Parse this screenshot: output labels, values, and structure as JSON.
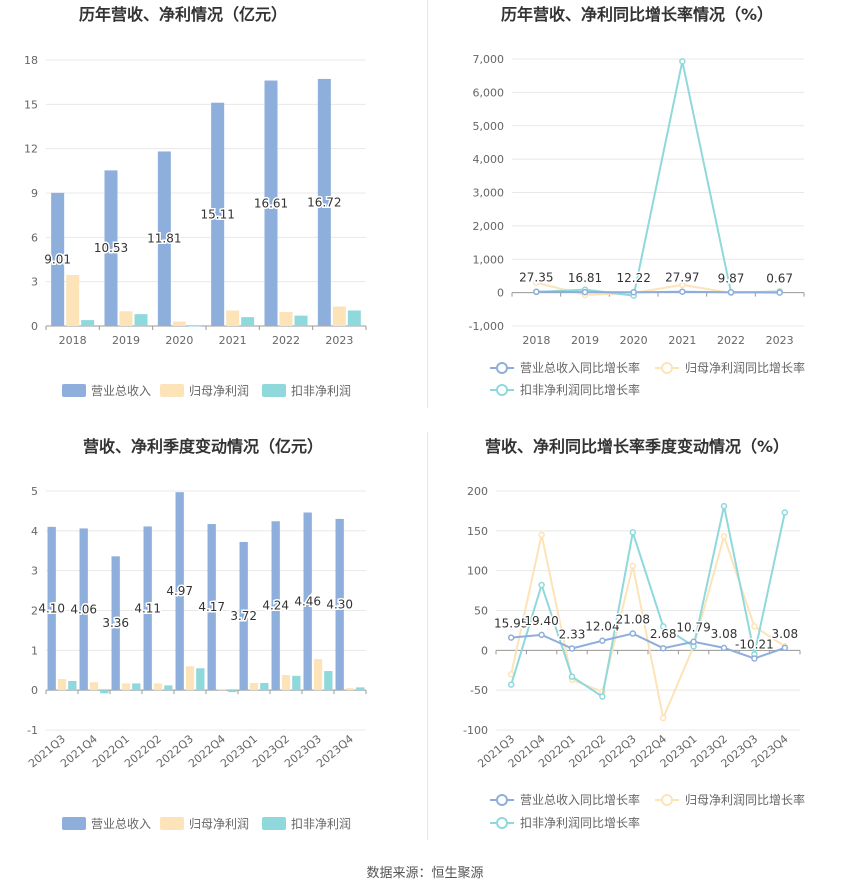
{
  "footer": {
    "source": "数据来源：恒生聚源"
  },
  "colors": {
    "blue": "#8eaedc",
    "orange": "#fde3b8",
    "teal": "#8fd8dc",
    "grid": "#e8e8e8",
    "axis": "#999999",
    "text": "#666666",
    "title": "#333333"
  },
  "chart_data": [
    {
      "id": "annual-revenue",
      "type": "bar",
      "title": "历年营收、净利情况（亿元）",
      "categories": [
        "2018",
        "2019",
        "2020",
        "2021",
        "2022",
        "2023"
      ],
      "series": [
        {
          "name": "营业总收入",
          "color": "#8eaedc",
          "values": [
            9.01,
            10.53,
            11.81,
            15.11,
            16.61,
            16.72
          ],
          "labels": [
            "9.01",
            "10.53",
            "11.81",
            "15.11",
            "16.61",
            "16.72"
          ]
        },
        {
          "name": "归母净利润",
          "color": "#fde3b8",
          "values": [
            3.45,
            1.0,
            0.3,
            1.05,
            0.95,
            1.32
          ]
        },
        {
          "name": "扣非净利润",
          "color": "#8fd8dc",
          "values": [
            0.4,
            0.8,
            0.0,
            0.6,
            0.7,
            1.05
          ]
        }
      ],
      "yticks": [
        "0",
        "3",
        "6",
        "9",
        "12",
        "15",
        "18"
      ],
      "ylim": [
        0,
        18
      ],
      "legend": "bottom"
    },
    {
      "id": "annual-growth",
      "type": "line",
      "title": "历年营收、净利同比增长率情况（%）",
      "categories": [
        "2018",
        "2019",
        "2020",
        "2021",
        "2022",
        "2023"
      ],
      "series": [
        {
          "name": "营业总收入同比增长率",
          "color": "#8eaedc",
          "values": [
            27.35,
            16.81,
            12.22,
            27.97,
            9.87,
            0.67
          ],
          "labels": [
            "27.35",
            "16.81",
            "12.22",
            "27.97",
            "9.87",
            "0.67"
          ]
        },
        {
          "name": "归母净利润同比增长率",
          "color": "#fde3b8",
          "values": [
            300,
            -70,
            -10,
            230,
            -10,
            40
          ]
        },
        {
          "name": "扣非净利润同比增长率",
          "color": "#8fd8dc",
          "values": [
            20,
            90,
            -90,
            6930,
            10,
            30
          ]
        }
      ],
      "yticks": [
        "-1,000",
        "0",
        "1,000",
        "2,000",
        "3,000",
        "4,000",
        "5,000",
        "6,000",
        "7,000"
      ],
      "ylim": [
        -1000,
        7000
      ],
      "legend": "bottom"
    },
    {
      "id": "quarterly-revenue",
      "type": "bar",
      "title": "营收、净利季度变动情况（亿元）",
      "categories": [
        "2021Q3",
        "2021Q4",
        "2022Q1",
        "2022Q2",
        "2022Q3",
        "2022Q4",
        "2023Q1",
        "2023Q2",
        "2023Q3",
        "2023Q4"
      ],
      "series": [
        {
          "name": "营业总收入",
          "color": "#8eaedc",
          "values": [
            4.1,
            4.06,
            3.36,
            4.11,
            4.97,
            4.17,
            3.72,
            4.24,
            4.46,
            4.3
          ],
          "labels": [
            "4.10",
            "4.06",
            "3.36",
            "4.11",
            "4.97",
            "4.17",
            "3.72",
            "4.24",
            "4.46",
            "4.30"
          ]
        },
        {
          "name": "归母净利润",
          "color": "#fde3b8",
          "values": [
            0.28,
            0.2,
            0.17,
            0.17,
            0.6,
            0.03,
            0.18,
            0.38,
            0.78,
            0.05
          ]
        },
        {
          "name": "扣非净利润",
          "color": "#8fd8dc",
          "values": [
            0.23,
            -0.08,
            0.17,
            0.12,
            0.55,
            -0.05,
            0.18,
            0.36,
            0.48,
            0.07
          ]
        }
      ],
      "yticks": [
        "-1",
        "0",
        "1",
        "2",
        "3",
        "4",
        "5"
      ],
      "ylim": [
        -1,
        5
      ],
      "legend": "bottom"
    },
    {
      "id": "quarterly-growth",
      "type": "line",
      "title": "营收、净利同比增长率季度变动情况（%）",
      "categories": [
        "2021Q3",
        "2021Q4",
        "2022Q1",
        "2022Q2",
        "2022Q3",
        "2022Q4",
        "2023Q1",
        "2023Q2",
        "2023Q3",
        "2023Q4"
      ],
      "series": [
        {
          "name": "营业总收入同比增长率",
          "color": "#8eaedc",
          "values": [
            15.95,
            19.4,
            2.33,
            12.04,
            21.08,
            2.68,
            10.79,
            3.08,
            -10.21,
            3.08
          ],
          "labels": [
            "15.95",
            "19.40",
            "2.33",
            "12.04",
            "21.08",
            "2.68",
            "10.79",
            "3.08",
            "-10.21",
            "3.08"
          ]
        },
        {
          "name": "归母净利润同比增长率",
          "color": "#fde3b8",
          "values": [
            -30,
            145,
            -37,
            -52,
            106,
            -85,
            5,
            143,
            30,
            5
          ]
        },
        {
          "name": "扣非净利润同比增长率",
          "color": "#8fd8dc",
          "values": [
            -43,
            82,
            -33,
            -58,
            148,
            30,
            5,
            181,
            -5,
            173
          ]
        }
      ],
      "yticks": [
        "-100",
        "-50",
        "0",
        "50",
        "100",
        "150",
        "200"
      ],
      "ylim": [
        -100,
        200
      ],
      "legend": "bottom"
    }
  ]
}
